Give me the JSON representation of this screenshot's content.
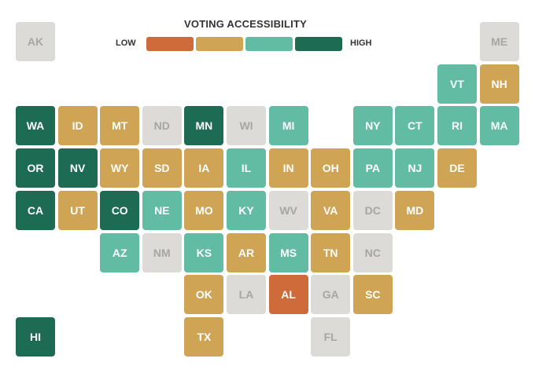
{
  "title": "VOTING ACCESSIBILITY",
  "legend": {
    "low": "LOW",
    "high": "HIGH",
    "colors": [
      "#cf6b3a",
      "#cfa555",
      "#62bca4",
      "#1e6b53"
    ]
  },
  "tiles": [
    {
      "label": "AK",
      "color": "#dcdbd7",
      "text_color": "#a6a6a6"
    },
    {
      "label": "ME",
      "color": "#dcdbd7",
      "text_color": "#a6a6a6"
    },
    {
      "label": "VT",
      "color": "#62bca4",
      "text_color": "#ffffff"
    },
    {
      "label": "NH",
      "color": "#cfa555",
      "text_color": "#ffffff"
    },
    {
      "label": "WA",
      "color": "#1e6b53",
      "text_color": "#ffffff"
    },
    {
      "label": "ID",
      "color": "#cfa555",
      "text_color": "#ffffff"
    },
    {
      "label": "MT",
      "color": "#cfa555",
      "text_color": "#ffffff"
    },
    {
      "label": "ND",
      "color": "#dcdbd7",
      "text_color": "#a6a6a6"
    },
    {
      "label": "MN",
      "color": "#1e6b53",
      "text_color": "#ffffff"
    },
    {
      "label": "WI",
      "color": "#dcdbd7",
      "text_color": "#a6a6a6"
    },
    {
      "label": "MI",
      "color": "#62bca4",
      "text_color": "#ffffff"
    },
    {
      "label": "NY",
      "color": "#62bca4",
      "text_color": "#ffffff"
    },
    {
      "label": "CT",
      "color": "#62bca4",
      "text_color": "#ffffff"
    },
    {
      "label": "RI",
      "color": "#62bca4",
      "text_color": "#ffffff"
    },
    {
      "label": "MA",
      "color": "#62bca4",
      "text_color": "#ffffff"
    },
    {
      "label": "OR",
      "color": "#1e6b53",
      "text_color": "#ffffff"
    },
    {
      "label": "NV",
      "color": "#1e6b53",
      "text_color": "#ffffff"
    },
    {
      "label": "WY",
      "color": "#cfa555",
      "text_color": "#ffffff"
    },
    {
      "label": "SD",
      "color": "#cfa555",
      "text_color": "#ffffff"
    },
    {
      "label": "IA",
      "color": "#cfa555",
      "text_color": "#ffffff"
    },
    {
      "label": "IL",
      "color": "#62bca4",
      "text_color": "#ffffff"
    },
    {
      "label": "IN",
      "color": "#cfa555",
      "text_color": "#ffffff"
    },
    {
      "label": "OH",
      "color": "#cfa555",
      "text_color": "#ffffff"
    },
    {
      "label": "PA",
      "color": "#62bca4",
      "text_color": "#ffffff"
    },
    {
      "label": "NJ",
      "color": "#62bca4",
      "text_color": "#ffffff"
    },
    {
      "label": "DE",
      "color": "#cfa555",
      "text_color": "#ffffff"
    },
    {
      "label": "CA",
      "color": "#1e6b53",
      "text_color": "#ffffff"
    },
    {
      "label": "UT",
      "color": "#cfa555",
      "text_color": "#ffffff"
    },
    {
      "label": "CO",
      "color": "#1e6b53",
      "text_color": "#ffffff"
    },
    {
      "label": "NE",
      "color": "#62bca4",
      "text_color": "#ffffff"
    },
    {
      "label": "MO",
      "color": "#cfa555",
      "text_color": "#ffffff"
    },
    {
      "label": "KY",
      "color": "#62bca4",
      "text_color": "#ffffff"
    },
    {
      "label": "WV",
      "color": "#dcdbd7",
      "text_color": "#a6a6a6"
    },
    {
      "label": "VA",
      "color": "#cfa555",
      "text_color": "#ffffff"
    },
    {
      "label": "DC",
      "color": "#dcdbd7",
      "text_color": "#a6a6a6"
    },
    {
      "label": "MD",
      "color": "#cfa555",
      "text_color": "#ffffff"
    },
    {
      "label": "AZ",
      "color": "#62bca4",
      "text_color": "#ffffff"
    },
    {
      "label": "NM",
      "color": "#dcdbd7",
      "text_color": "#a6a6a6"
    },
    {
      "label": "KS",
      "color": "#62bca4",
      "text_color": "#ffffff"
    },
    {
      "label": "AR",
      "color": "#cfa555",
      "text_color": "#ffffff"
    },
    {
      "label": "MS",
      "color": "#62bca4",
      "text_color": "#ffffff"
    },
    {
      "label": "TN",
      "color": "#cfa555",
      "text_color": "#ffffff"
    },
    {
      "label": "NC",
      "color": "#dcdbd7",
      "text_color": "#a6a6a6"
    },
    {
      "label": "OK",
      "color": "#cfa555",
      "text_color": "#ffffff"
    },
    {
      "label": "LA",
      "color": "#dcdbd7",
      "text_color": "#a6a6a6"
    },
    {
      "label": "AL",
      "color": "#cf6b3a",
      "text_color": "#ffffff"
    },
    {
      "label": "GA",
      "color": "#dcdbd7",
      "text_color": "#a6a6a6"
    },
    {
      "label": "SC",
      "color": "#cfa555",
      "text_color": "#ffffff"
    },
    {
      "label": "HI",
      "color": "#1e6b53",
      "text_color": "#ffffff"
    },
    {
      "label": "TX",
      "color": "#cfa555",
      "text_color": "#ffffff"
    },
    {
      "label": "FL",
      "color": "#dcdbd7",
      "text_color": "#a6a6a6"
    }
  ]
}
